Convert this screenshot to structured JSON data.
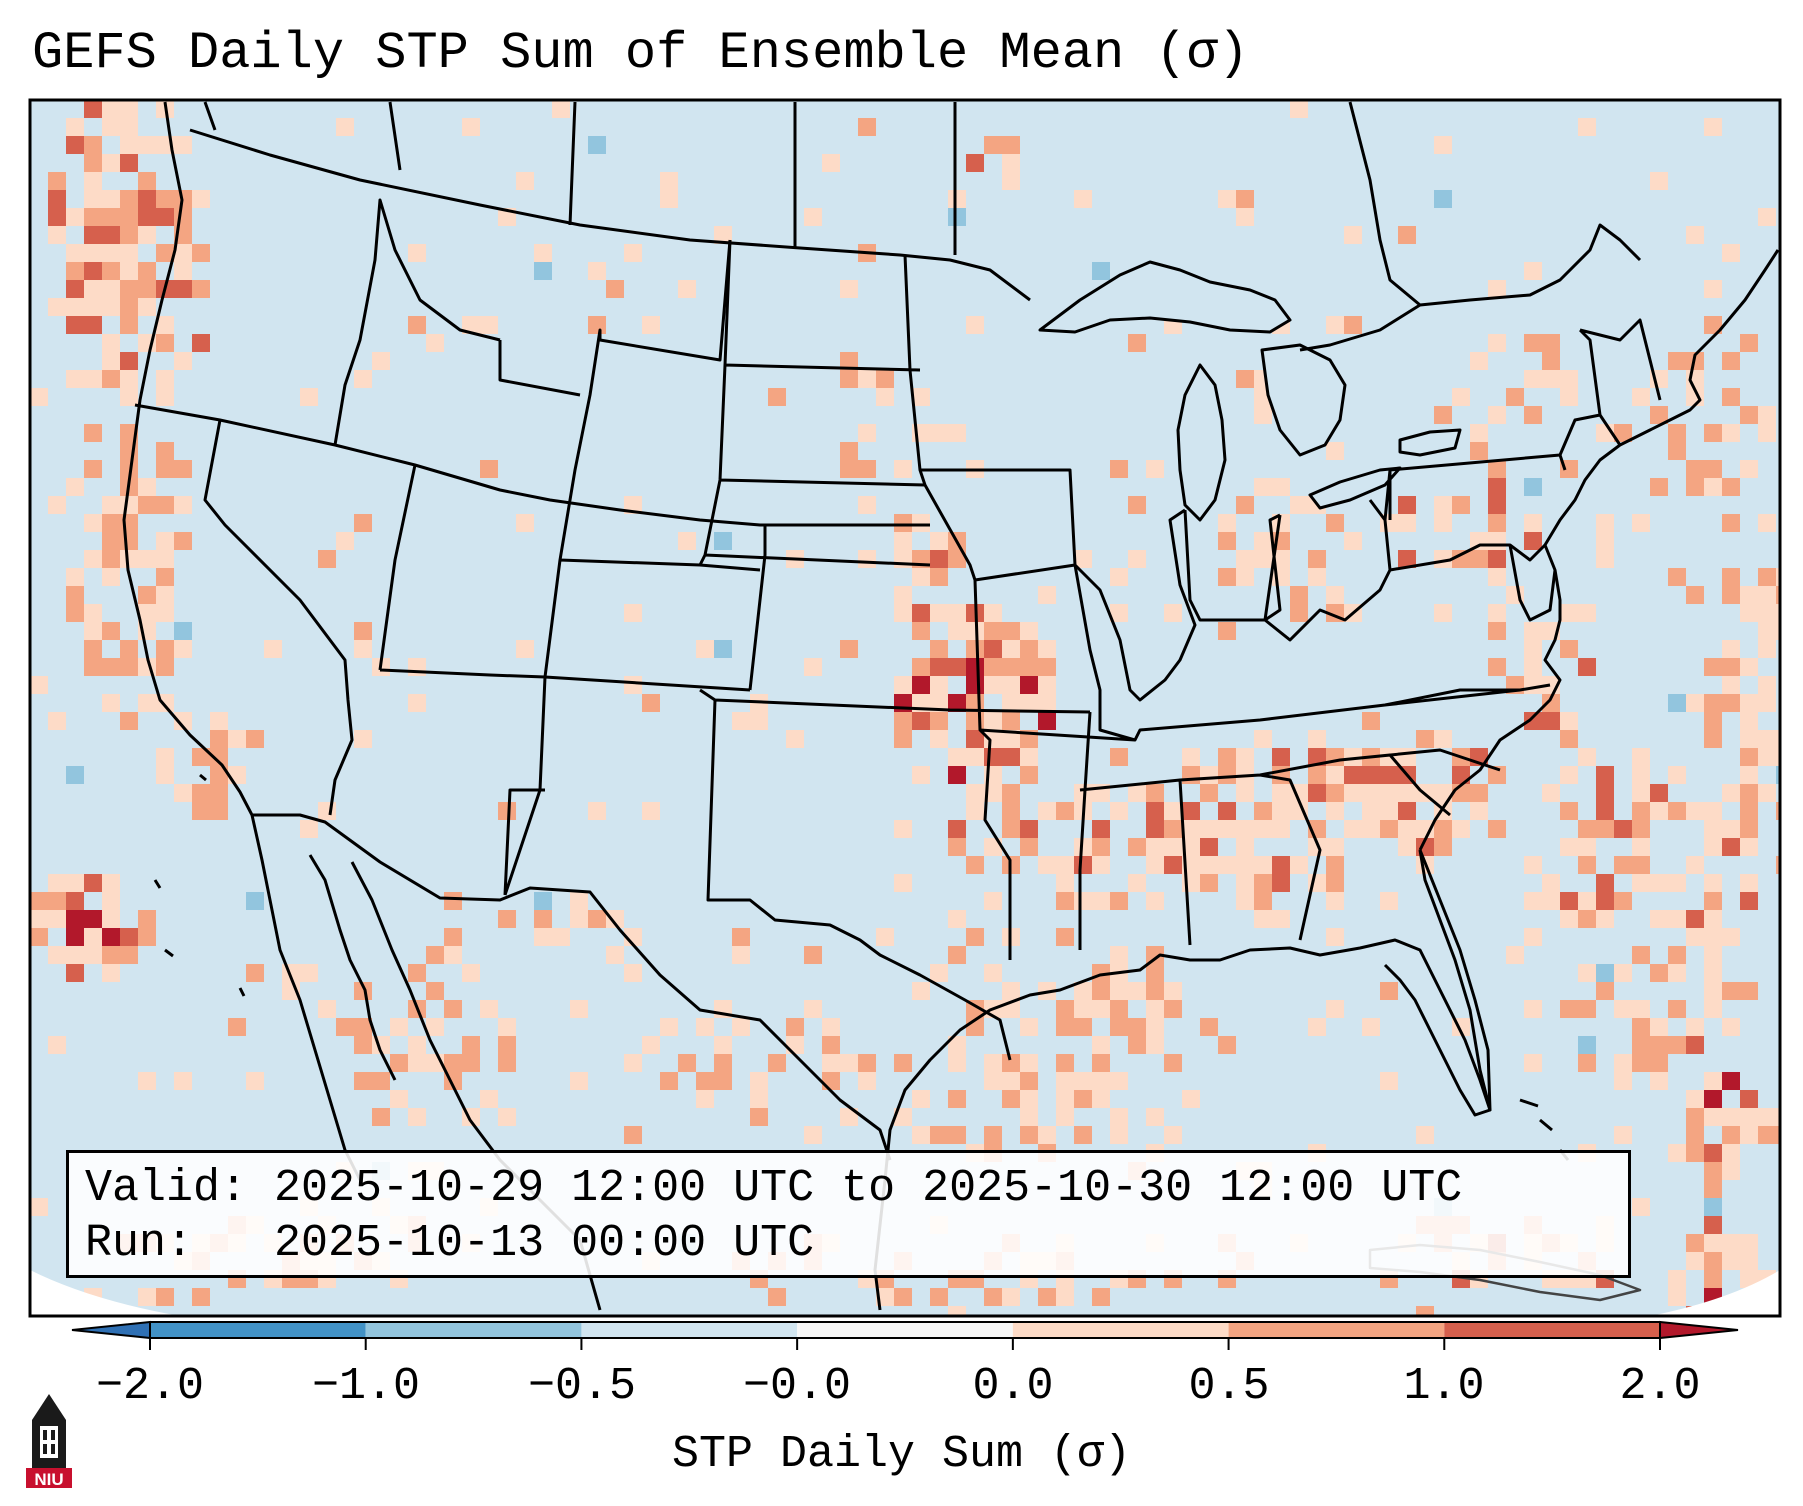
{
  "title": "GEFS Daily STP Sum of Ensemble Mean (σ)",
  "info": {
    "valid_line": "Valid: 2025-10-29 12:00 UTC to 2025-10-30 12:00 UTC",
    "run_line": "Run:   2025-10-13 00:00 UTC"
  },
  "colorbar": {
    "label": "STP Daily Sum (σ)",
    "ticks": [
      "−2.0",
      "−1.0",
      "−0.5",
      "−0.0",
      "0.0",
      "0.5",
      "1.0",
      "2.0"
    ],
    "bins": [
      {
        "name": "below -2.0",
        "color": "#2f70b4"
      },
      {
        "name": "-2.0 to -1.0",
        "color": "#4292c6"
      },
      {
        "name": "-1.0 to -0.5",
        "color": "#92c5de"
      },
      {
        "name": "-0.5 to -0.0",
        "color": "#d1e5f0"
      },
      {
        "name": "-0.0 to 0.0",
        "color": "#f7f7f7"
      },
      {
        "name": "0.0 to 0.5",
        "color": "#fddbc7"
      },
      {
        "name": "0.5 to 1.0",
        "color": "#f4a582"
      },
      {
        "name": "1.0 to 2.0",
        "color": "#d6604d"
      },
      {
        "name": "above 2.0",
        "color": "#b2182b"
      }
    ]
  },
  "map": {
    "background_color": "#d1e5f0",
    "outside_color": "#ffffff",
    "highlight_regions": [
      {
        "name": "Pacific Northwest coast",
        "level": 2
      },
      {
        "name": "California coast",
        "level": 1
      },
      {
        "name": "Eastern Pacific offshore",
        "level": 3
      },
      {
        "name": "Kansas / Oklahoma corridor",
        "level": 3
      },
      {
        "name": "Missouri / Arkansas",
        "level": 2
      },
      {
        "name": "Tennessee Valley / Southeast",
        "level": 2
      },
      {
        "name": "Carolinas",
        "level": 2
      },
      {
        "name": "Western Atlantic",
        "level": 2
      },
      {
        "name": "Bahamas / Caribbean",
        "level": 3
      },
      {
        "name": "Gulf of Mexico",
        "level": 1
      }
    ]
  },
  "logo": {
    "text": "NIU"
  }
}
